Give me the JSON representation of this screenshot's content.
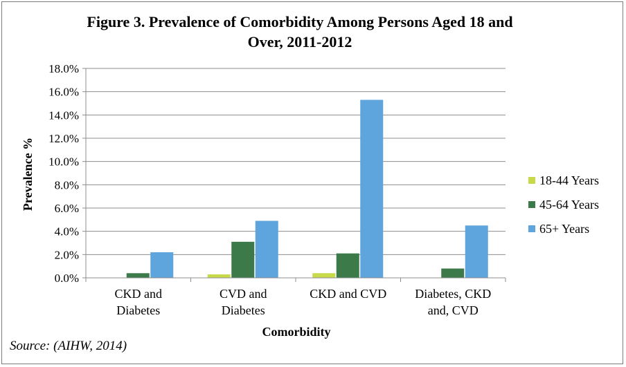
{
  "chart_data": {
    "type": "bar",
    "title": "Figure 3. Prevalence of Comorbidity Among Persons Aged 18 and Over, 2011-2012",
    "title_lines": [
      "Figure 3. Prevalence of Comorbidity Among Persons Aged 18 and",
      "Over, 2011-2012"
    ],
    "xlabel": "Comorbidity",
    "ylabel": "Prevalence %",
    "ylim": [
      0,
      18
    ],
    "yticks": [
      "0.0%",
      "2.0%",
      "4.0%",
      "6.0%",
      "8.0%",
      "10.0%",
      "12.0%",
      "14.0%",
      "16.0%",
      "18.0%"
    ],
    "grid": true,
    "legend_position": "right",
    "categories": [
      [
        "CKD and",
        "Diabetes"
      ],
      [
        "CVD and",
        "Diabetes"
      ],
      [
        "CKD and CVD"
      ],
      [
        "Diabetes, CKD",
        "and, CVD"
      ]
    ],
    "series": [
      {
        "name": "18-44 Years",
        "color": "#c8d94a",
        "values": [
          0.0,
          0.3,
          0.4,
          0.0
        ]
      },
      {
        "name": "45-64 Years",
        "color": "#3d7a4a",
        "values": [
          0.4,
          3.1,
          2.1,
          0.8
        ]
      },
      {
        "name": "65+ Years",
        "color": "#5fa5dd",
        "values": [
          2.2,
          4.9,
          15.3,
          4.5
        ]
      }
    ],
    "source": "Source: (AIHW, 2014)"
  }
}
